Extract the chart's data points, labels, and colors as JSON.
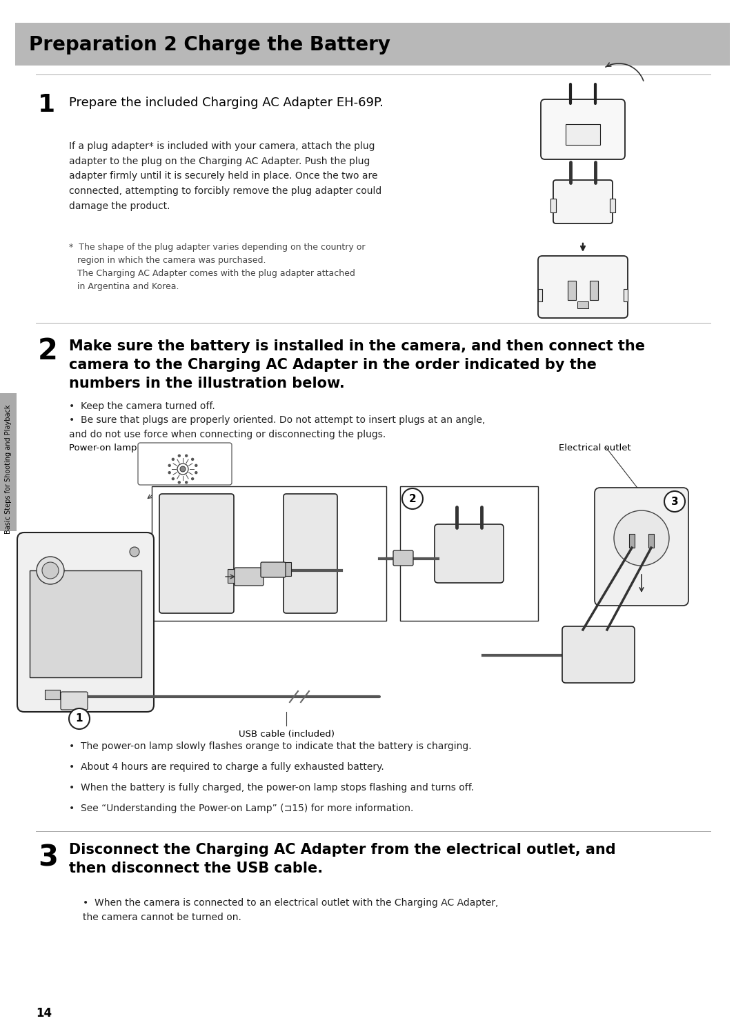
{
  "page_width": 10.8,
  "page_height": 14.86,
  "dpi": 100,
  "background_color": "#ffffff",
  "header_bg_color": "#b8b8b8",
  "header_text": "Preparation 2 Charge the Battery",
  "header_text_color": "#000000",
  "header_font_size": 20,
  "sidebar_color": "#b0b0b0",
  "page_number": "14",
  "sidebar_text": "Basic Steps for Shooting and Playback",
  "step1_number": "1",
  "step1_heading": "Prepare the included Charging AC Adapter EH-69P.",
  "step1_heading_fs": 13,
  "step1_body": "If a plug adapter* is included with your camera, attach the plug\nadapter to the plug on the Charging AC Adapter. Push the plug\nadapter firmly until it is securely held in place. Once the two are\nconnected, attempting to forcibly remove the plug adapter could\ndamage the product.",
  "step1_note": "*  The shape of the plug adapter varies depending on the country or\n   region in which the camera was purchased.\n   The Charging AC Adapter comes with the plug adapter attached\n   in Argentina and Korea.",
  "step2_number": "2",
  "step2_heading": "Make sure the battery is installed in the camera, and then connect the\ncamera to the Charging AC Adapter in the order indicated by the\nnumbers in the illustration below.",
  "step2_heading_fs": 15,
  "step2_bullet1": "Keep the camera turned off.",
  "step2_bullet2": "Be sure that plugs are properly oriented. Do not attempt to insert plugs at an angle,\nand do not use force when connecting or disconnecting the plugs.",
  "step2_label_power": "Power-on lamp",
  "step2_label_outlet": "Electrical outlet",
  "step2_label_usb": "USB cable (included)",
  "step2_bullets_after": [
    "The power-on lamp slowly flashes orange to indicate that the battery is charging.",
    "About 4 hours are required to charge a fully exhausted battery.",
    "When the battery is fully charged, the power-on lamp stops flashing and turns off.",
    "See “Understanding the Power-on Lamp” (⊐15) for more information."
  ],
  "step3_number": "3",
  "step3_heading": "Disconnect the Charging AC Adapter from the electrical outlet, and\nthen disconnect the USB cable.",
  "step3_heading_fs": 15,
  "step3_bullet1": "When the camera is connected to an electrical outlet with the Charging AC Adapter,\nthe camera cannot be turned on.",
  "divider_color": "#aaaaaa",
  "body_font_size": 10,
  "step_number_font_size": 26,
  "note_font_size": 9
}
